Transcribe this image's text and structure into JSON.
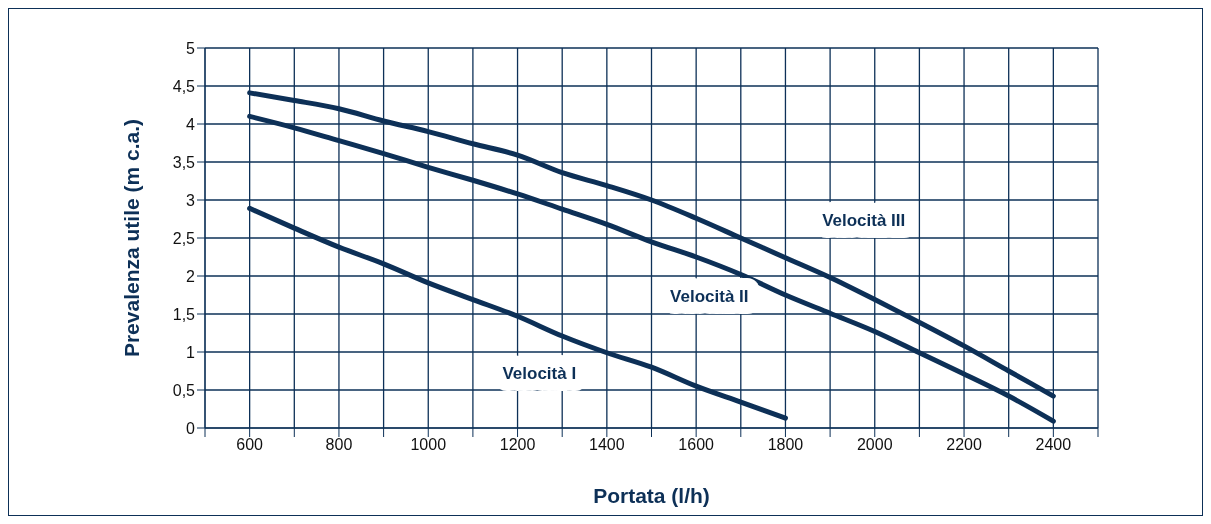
{
  "chart_data": {
    "type": "line",
    "xlabel": "Portata (l/h)",
    "ylabel": "Prevalenza utile (m c.a.)",
    "xlim": [
      500,
      2500
    ],
    "ylim": [
      0,
      5
    ],
    "xticks": [
      {
        "value": 500,
        "label": null
      },
      600,
      {
        "value": 700,
        "label": null
      },
      800,
      {
        "value": 900,
        "label": null
      },
      1000,
      {
        "value": 1100,
        "label": null
      },
      1200,
      {
        "value": 1300,
        "label": null
      },
      1400,
      {
        "value": 1500,
        "label": null
      },
      1600,
      {
        "value": 1700,
        "label": null
      },
      1800,
      {
        "value": 1900,
        "label": null
      },
      2000,
      {
        "value": 2100,
        "label": null
      },
      2200,
      {
        "value": 2300,
        "label": null
      },
      2400,
      {
        "value": 2500,
        "label": null
      }
    ],
    "yticks": [
      0,
      {
        "value": 0.5,
        "label": "0,5"
      },
      1,
      {
        "value": 1.5,
        "label": "1,5"
      },
      2,
      {
        "value": 2.5,
        "label": "2,5"
      },
      3,
      {
        "value": 3.5,
        "label": "3,5"
      },
      4,
      {
        "value": 4.5,
        "label": "4,5"
      },
      5
    ],
    "grid": true,
    "legend": false,
    "series": [
      {
        "name": "Velocità I",
        "color": "#0d3057",
        "x": [
          600,
          700,
          800,
          900,
          1000,
          1100,
          1200,
          1300,
          1400,
          1500,
          1600,
          1700,
          1800
        ],
        "values": [
          2.89,
          2.63,
          2.38,
          2.16,
          1.91,
          1.69,
          1.47,
          1.21,
          0.99,
          0.8,
          0.55,
          0.34,
          0.13
        ]
      },
      {
        "name": "Velocità II",
        "color": "#0d3057",
        "x": [
          600,
          700,
          800,
          900,
          1000,
          1100,
          1200,
          1300,
          1400,
          1500,
          1600,
          1700,
          1800,
          1900,
          2000,
          2100,
          2200,
          2300,
          2400
        ],
        "values": [
          4.1,
          3.95,
          3.78,
          3.61,
          3.43,
          3.26,
          3.08,
          2.88,
          2.68,
          2.45,
          2.25,
          2.02,
          1.75,
          1.51,
          1.27,
          0.99,
          0.71,
          0.42,
          0.09
        ]
      },
      {
        "name": "Velocità III",
        "color": "#0d3057",
        "x": [
          600,
          700,
          800,
          900,
          1000,
          1100,
          1200,
          1300,
          1400,
          1500,
          1600,
          1700,
          1800,
          1900,
          2000,
          2100,
          2200,
          2300,
          2400
        ],
        "values": [
          4.41,
          4.31,
          4.2,
          4.04,
          3.9,
          3.74,
          3.59,
          3.36,
          3.19,
          3.0,
          2.76,
          2.5,
          2.24,
          1.98,
          1.69,
          1.39,
          1.08,
          0.75,
          0.42
        ]
      }
    ]
  }
}
